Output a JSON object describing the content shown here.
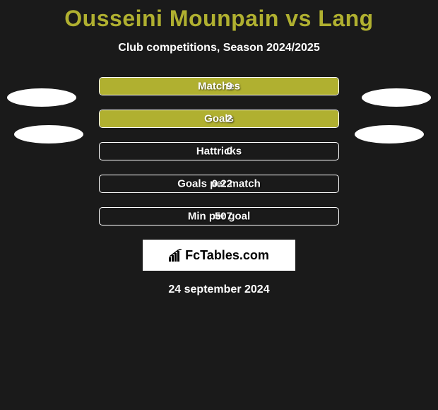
{
  "title": "Ousseini Mounpain vs Lang",
  "subtitle": "Club competitions, Season 2024/2025",
  "date": "24 september 2024",
  "logo_text": "FcTables.com",
  "colors": {
    "bar_fill": "#b0b030",
    "bar_border": "#ffffff",
    "background": "#1a1a1a",
    "title": "#b0b030"
  },
  "rows": [
    {
      "label": "Matches",
      "left_val": "",
      "right_val": "9",
      "left_pct": 0,
      "right_pct": 100
    },
    {
      "label": "Goals",
      "left_val": "",
      "right_val": "2",
      "left_pct": 0,
      "right_pct": 100
    },
    {
      "label": "Hattricks",
      "left_val": "",
      "right_val": "0",
      "left_pct": 0,
      "right_pct": 0
    },
    {
      "label": "Goals per match",
      "left_val": "",
      "right_val": "0.22",
      "left_pct": 0,
      "right_pct": 0
    },
    {
      "label": "Min per goal",
      "left_val": "",
      "right_val": "507",
      "left_pct": 0,
      "right_pct": 0
    }
  ]
}
